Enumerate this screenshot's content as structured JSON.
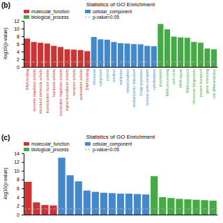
{
  "chart_data": [
    {
      "type": "bar",
      "title": "Statistics of GO Enrichment",
      "ylabel": "-log10(p-value)",
      "annotations": [
        "(b)"
      ],
      "categories": [
        "RNA binding",
        "enzyme regulator activity",
        "structural molecule activity",
        "transcription factor activity",
        "nuclease activity",
        "translation regulator activity",
        "signal transducer activity",
        "receptor activity",
        "antioxidant activity",
        "DNA binding",
        "ribosome",
        "cytoplasm",
        "cytosol",
        "nucleus",
        "nucleolus",
        "mitochondrion",
        "endoplasmic reticulum",
        "Golgi apparatus",
        "nuclear pore complex",
        "cytoskeleton",
        "translation",
        "RNA processing",
        "cell cycle",
        "DNA repair",
        "RNA transport",
        "ribosome biogenesis",
        "protein transport",
        "gene silencing",
        "cell differentiation"
      ],
      "series": [
        {
          "name": "molecular_function",
          "color": "#CC3333",
          "values": [
            7.4,
            6.5,
            6.3,
            6.1,
            5.5,
            5.2,
            4.6,
            4.5,
            4.4,
            4.1,
            null,
            null,
            null,
            null,
            null,
            null,
            null,
            null,
            null,
            null,
            null,
            null,
            null,
            null,
            null,
            null,
            null,
            null,
            null
          ]
        },
        {
          "name": "cellular_component",
          "color": "#4488CC",
          "values": [
            null,
            null,
            null,
            null,
            null,
            null,
            null,
            null,
            null,
            null,
            7.8,
            7.2,
            7.1,
            6.5,
            6.2,
            6.1,
            5.95,
            5.9,
            5.5,
            5.4,
            null,
            null,
            null,
            null,
            null,
            null,
            null,
            null,
            null
          ]
        },
        {
          "name": "biological_process",
          "color": "#44AA44",
          "values": [
            null,
            null,
            null,
            null,
            null,
            null,
            null,
            null,
            null,
            null,
            null,
            null,
            null,
            null,
            null,
            null,
            null,
            null,
            null,
            null,
            11.2,
            9.8,
            7.9,
            7.7,
            7.6,
            6.5,
            6.3,
            4.8,
            4.6
          ]
        }
      ],
      "threshold": {
        "name": "p-value<0.05",
        "value": 1.3,
        "color": "#AAAAAA",
        "line_style": "dashed"
      },
      "ylim": [
        0,
        12
      ],
      "yticks": [
        0,
        2,
        4,
        6,
        8,
        10,
        12
      ],
      "grid": false,
      "legend": "top left"
    },
    {
      "type": "bar",
      "title": "Statistics of GO Enrichment",
      "ylabel": "-log10(p-value)",
      "annotations": [
        "(c)"
      ],
      "categories": [
        null,
        null,
        null,
        null,
        null,
        null,
        null,
        null,
        null,
        null,
        null,
        null,
        null,
        null,
        null,
        null,
        null,
        null,
        null,
        null,
        null,
        null,
        null
      ],
      "series": [
        {
          "name": "molecular_function",
          "color": "#CC3333",
          "values": [
            7.5,
            2.8,
            2.2,
            2.1,
            null,
            null,
            null,
            null,
            null,
            null,
            null,
            null,
            null,
            null,
            null,
            null,
            null,
            null,
            null,
            null,
            null,
            null,
            null
          ]
        },
        {
          "name": "cellular_component",
          "color": "#4488CC",
          "values": [
            null,
            null,
            null,
            null,
            13.0,
            9.0,
            7.6,
            5.5,
            5.2,
            5.0,
            4.9,
            4.8,
            4.8,
            4.7,
            4.6,
            null,
            null,
            null,
            null,
            null,
            null,
            null,
            null
          ]
        },
        {
          "name": "biological_process",
          "color": "#44AA44",
          "values": [
            null,
            null,
            null,
            null,
            null,
            null,
            null,
            null,
            null,
            null,
            null,
            null,
            null,
            null,
            null,
            8.8,
            4.0,
            3.8,
            3.6,
            3.5,
            3.4,
            3.3,
            3.2
          ]
        }
      ],
      "threshold": {
        "name": "p-value<0.05",
        "value": 1.3,
        "color": "#AAAAAA",
        "line_style": "dashed"
      },
      "ylim": [
        0,
        14
      ],
      "yticks": [
        0,
        2,
        4,
        6,
        8,
        10,
        12,
        14
      ],
      "grid": false,
      "legend": "top left"
    }
  ]
}
